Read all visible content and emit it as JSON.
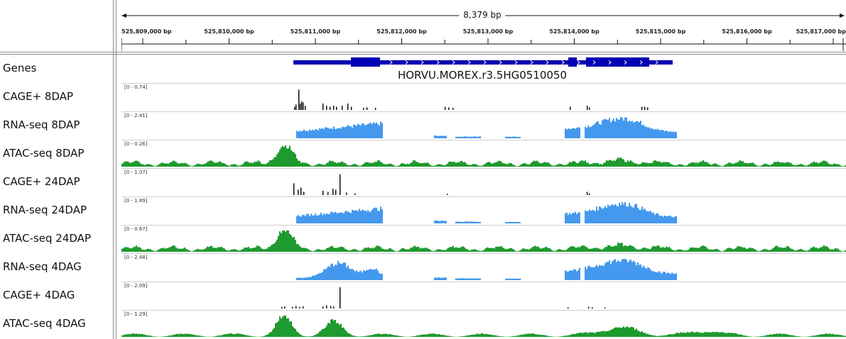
{
  "ruler": {
    "span_label": "8,379 bp",
    "ticks": [
      "525,809,000 bp",
      "525,810,000 bp",
      "525,811,000 bp",
      "525,812,000 bp",
      "525,813,000 bp",
      "525,814,000 bp",
      "525,815,000 bp",
      "525,816,000 bp",
      "525,817,000 bp"
    ]
  },
  "gene": {
    "name": "HORVU.MOREX.r3.5HG0510050",
    "color": "#0000b2"
  },
  "tracks": [
    {
      "label": "Genes",
      "range": "",
      "type": "gene"
    },
    {
      "label": "CAGE+ 8DAP",
      "range": "[0 - 0.74]",
      "type": "cage",
      "color": "#000000"
    },
    {
      "label": "RNA-seq 8DAP",
      "range": "[0 - 2.41]",
      "type": "rna",
      "color": "#4499ee"
    },
    {
      "label": "ATAC-seq 8DAP",
      "range": "[0 - 0.26]",
      "type": "atac",
      "color": "#1e9a2e"
    },
    {
      "label": "CAGE+ 24DAP",
      "range": "[0 - 1.07]",
      "type": "cage",
      "color": "#000000"
    },
    {
      "label": "RNA-seq 24DAP",
      "range": "[0 - 1.89]",
      "type": "rna",
      "color": "#4499ee"
    },
    {
      "label": "ATAC-seq 24DAP",
      "range": "[0 - 0.67]",
      "type": "atac",
      "color": "#1e9a2e"
    },
    {
      "label": "RNA-seq 4DAG",
      "range": "[0 - 2.48]",
      "type": "rna",
      "color": "#4499ee"
    },
    {
      "label": "CAGE+ 4DAG",
      "range": "[0 - 2.09]",
      "type": "cage",
      "color": "#000000"
    },
    {
      "label": "ATAC-seq 4DAG",
      "range": "[0 - 1.29]",
      "type": "atac",
      "color": "#1e9a2e"
    }
  ]
}
